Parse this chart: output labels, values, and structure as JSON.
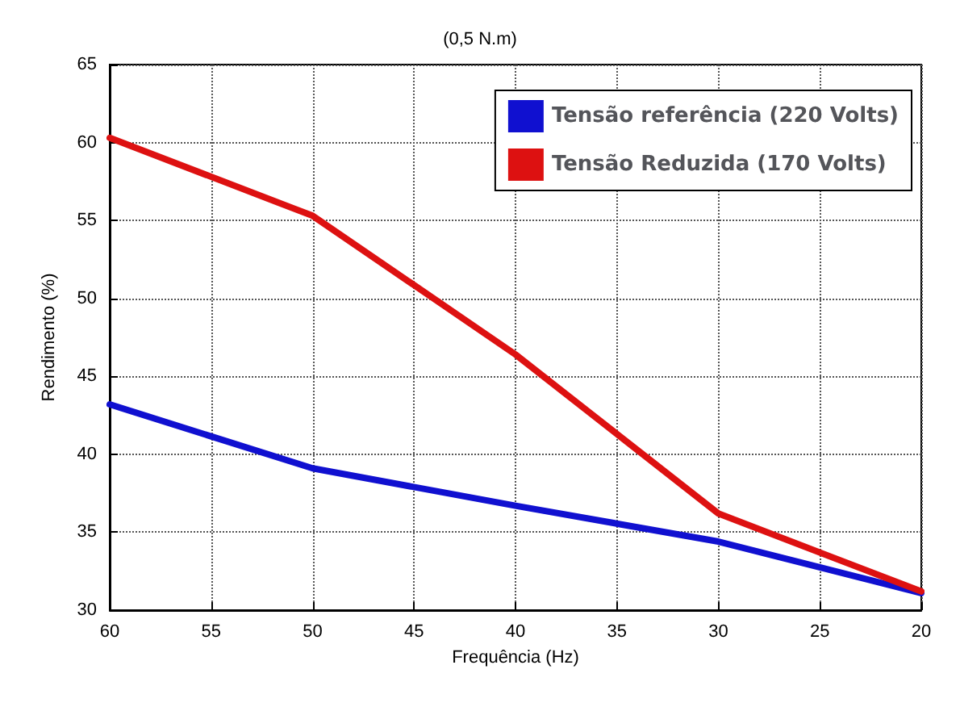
{
  "chart_data": {
    "type": "line",
    "title": "(0,5 N.m)",
    "xlabel": "Frequência (Hz)",
    "ylabel": "Rendimento (%)",
    "x": [
      60,
      50,
      40,
      30,
      20
    ],
    "series": [
      {
        "name": "Tensão referência (220 Volts)",
        "color": "#1010d0",
        "values": [
          43.2,
          39.1,
          36.7,
          34.4,
          31.1
        ]
      },
      {
        "name": "Tensão Reduzida (170 Volts)",
        "color": "#dd1111",
        "values": [
          60.3,
          55.3,
          46.4,
          36.2,
          31.2
        ]
      }
    ],
    "xlim": [
      60,
      20
    ],
    "xticks": [
      60,
      55,
      50,
      45,
      40,
      35,
      30,
      25,
      20
    ],
    "ylim": [
      30,
      65
    ],
    "yticks": [
      30,
      35,
      40,
      45,
      50,
      55,
      60,
      65
    ],
    "grid": true,
    "legend": "top right",
    "marker": "none",
    "line_style": "solid"
  }
}
